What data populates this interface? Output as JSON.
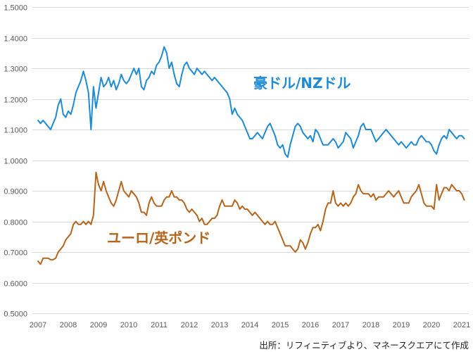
{
  "chart_data": {
    "type": "line",
    "ylim": [
      0.5,
      1.5
    ],
    "yticks": [
      "0.5000",
      "0.6000",
      "0.7000",
      "0.8000",
      "0.9000",
      "1.0000",
      "1.1000",
      "1.2000",
      "1.3000",
      "1.4000",
      "1.5000"
    ],
    "xticks": [
      "2007",
      "2008",
      "2009",
      "2010",
      "2011",
      "2012",
      "2013",
      "2014",
      "2015",
      "2016",
      "2017",
      "2018",
      "2019",
      "2020",
      "2021"
    ],
    "grid": "horizontal",
    "legend": "inline",
    "x": [
      "2007-01",
      "2007-02",
      "2007-03",
      "2007-04",
      "2007-05",
      "2007-06",
      "2007-07",
      "2007-08",
      "2007-09",
      "2007-10",
      "2007-11",
      "2007-12",
      "2008-01",
      "2008-02",
      "2008-03",
      "2008-04",
      "2008-05",
      "2008-06",
      "2008-07",
      "2008-08",
      "2008-09",
      "2008-10",
      "2008-11",
      "2008-12",
      "2009-01",
      "2009-02",
      "2009-03",
      "2009-04",
      "2009-05",
      "2009-06",
      "2009-07",
      "2009-08",
      "2009-09",
      "2009-10",
      "2009-11",
      "2009-12",
      "2010-01",
      "2010-02",
      "2010-03",
      "2010-04",
      "2010-05",
      "2010-06",
      "2010-07",
      "2010-08",
      "2010-09",
      "2010-10",
      "2010-11",
      "2010-12",
      "2011-01",
      "2011-02",
      "2011-03",
      "2011-04",
      "2011-05",
      "2011-06",
      "2011-07",
      "2011-08",
      "2011-09",
      "2011-10",
      "2011-11",
      "2011-12",
      "2012-01",
      "2012-02",
      "2012-03",
      "2012-04",
      "2012-05",
      "2012-06",
      "2012-07",
      "2012-08",
      "2012-09",
      "2012-10",
      "2012-11",
      "2012-12",
      "2013-01",
      "2013-02",
      "2013-03",
      "2013-04",
      "2013-05",
      "2013-06",
      "2013-07",
      "2013-08",
      "2013-09",
      "2013-10",
      "2013-11",
      "2013-12",
      "2014-01",
      "2014-02",
      "2014-03",
      "2014-04",
      "2014-05",
      "2014-06",
      "2014-07",
      "2014-08",
      "2014-09",
      "2014-10",
      "2014-11",
      "2014-12",
      "2015-01",
      "2015-02",
      "2015-03",
      "2015-04",
      "2015-05",
      "2015-06",
      "2015-07",
      "2015-08",
      "2015-09",
      "2015-10",
      "2015-11",
      "2015-12",
      "2016-01",
      "2016-02",
      "2016-03",
      "2016-04",
      "2016-05",
      "2016-06",
      "2016-07",
      "2016-08",
      "2016-09",
      "2016-10",
      "2016-11",
      "2016-12",
      "2017-01",
      "2017-02",
      "2017-03",
      "2017-04",
      "2017-05",
      "2017-06",
      "2017-07",
      "2017-08",
      "2017-09",
      "2017-10",
      "2017-11",
      "2017-12",
      "2018-01",
      "2018-02",
      "2018-03",
      "2018-04",
      "2018-05",
      "2018-06",
      "2018-07",
      "2018-08",
      "2018-09",
      "2018-10",
      "2018-11",
      "2018-12",
      "2019-01",
      "2019-02",
      "2019-03",
      "2019-04",
      "2019-05",
      "2019-06",
      "2019-07",
      "2019-08",
      "2019-09",
      "2019-10",
      "2019-11",
      "2019-12",
      "2020-01",
      "2020-02",
      "2020-03",
      "2020-04",
      "2020-05",
      "2020-06",
      "2020-07",
      "2020-08",
      "2020-09",
      "2020-10",
      "2020-11",
      "2020-12",
      "2021-01",
      "2021-02"
    ],
    "series": [
      {
        "name": "豪ドル/NZドル",
        "color": "#1f8bd3",
        "values": [
          1.13,
          1.12,
          1.13,
          1.12,
          1.11,
          1.1,
          1.12,
          1.14,
          1.18,
          1.2,
          1.15,
          1.14,
          1.16,
          1.15,
          1.18,
          1.22,
          1.24,
          1.26,
          1.29,
          1.26,
          1.22,
          1.1,
          1.24,
          1.17,
          1.22,
          1.27,
          1.24,
          1.25,
          1.27,
          1.24,
          1.26,
          1.23,
          1.25,
          1.28,
          1.26,
          1.25,
          1.26,
          1.28,
          1.3,
          1.28,
          1.3,
          1.24,
          1.23,
          1.26,
          1.27,
          1.29,
          1.28,
          1.31,
          1.32,
          1.34,
          1.37,
          1.35,
          1.3,
          1.32,
          1.28,
          1.25,
          1.24,
          1.28,
          1.31,
          1.32,
          1.3,
          1.29,
          1.28,
          1.3,
          1.29,
          1.28,
          1.29,
          1.28,
          1.27,
          1.26,
          1.27,
          1.26,
          1.25,
          1.24,
          1.23,
          1.22,
          1.2,
          1.15,
          1.17,
          1.15,
          1.14,
          1.13,
          1.11,
          1.09,
          1.07,
          1.07,
          1.08,
          1.09,
          1.08,
          1.07,
          1.09,
          1.11,
          1.12,
          1.1,
          1.08,
          1.05,
          1.04,
          1.05,
          1.02,
          1.01,
          1.05,
          1.08,
          1.11,
          1.12,
          1.11,
          1.09,
          1.08,
          1.07,
          1.08,
          1.06,
          1.1,
          1.09,
          1.07,
          1.05,
          1.05,
          1.05,
          1.06,
          1.07,
          1.06,
          1.04,
          1.05,
          1.06,
          1.09,
          1.08,
          1.07,
          1.04,
          1.06,
          1.08,
          1.11,
          1.12,
          1.1,
          1.1,
          1.1,
          1.08,
          1.06,
          1.07,
          1.08,
          1.09,
          1.1,
          1.09,
          1.08,
          1.07,
          1.06,
          1.05,
          1.06,
          1.05,
          1.04,
          1.05,
          1.06,
          1.05,
          1.05,
          1.07,
          1.08,
          1.07,
          1.06,
          1.06,
          1.05,
          1.03,
          1.02,
          1.05,
          1.07,
          1.08,
          1.07,
          1.1,
          1.09,
          1.08,
          1.07,
          1.08,
          1.08,
          1.07
        ]
      },
      {
        "name": "ユーロ/英ポンド",
        "color": "#b5651d",
        "values": [
          0.67,
          0.66,
          0.68,
          0.68,
          0.68,
          0.675,
          0.675,
          0.68,
          0.7,
          0.71,
          0.72,
          0.74,
          0.75,
          0.76,
          0.79,
          0.8,
          0.79,
          0.79,
          0.8,
          0.79,
          0.8,
          0.79,
          0.82,
          0.96,
          0.92,
          0.9,
          0.93,
          0.9,
          0.88,
          0.86,
          0.85,
          0.87,
          0.9,
          0.93,
          0.9,
          0.89,
          0.88,
          0.9,
          0.89,
          0.88,
          0.86,
          0.83,
          0.83,
          0.82,
          0.86,
          0.88,
          0.86,
          0.85,
          0.85,
          0.85,
          0.87,
          0.88,
          0.88,
          0.9,
          0.88,
          0.88,
          0.87,
          0.87,
          0.86,
          0.84,
          0.83,
          0.84,
          0.83,
          0.82,
          0.8,
          0.81,
          0.79,
          0.79,
          0.8,
          0.81,
          0.81,
          0.82,
          0.85,
          0.87,
          0.85,
          0.85,
          0.85,
          0.85,
          0.87,
          0.86,
          0.84,
          0.85,
          0.84,
          0.84,
          0.83,
          0.82,
          0.83,
          0.82,
          0.81,
          0.8,
          0.79,
          0.8,
          0.79,
          0.79,
          0.8,
          0.78,
          0.76,
          0.74,
          0.72,
          0.72,
          0.72,
          0.71,
          0.7,
          0.71,
          0.74,
          0.73,
          0.71,
          0.73,
          0.76,
          0.78,
          0.78,
          0.79,
          0.77,
          0.8,
          0.84,
          0.86,
          0.86,
          0.9,
          0.86,
          0.85,
          0.86,
          0.85,
          0.86,
          0.85,
          0.86,
          0.88,
          0.89,
          0.92,
          0.9,
          0.89,
          0.89,
          0.89,
          0.88,
          0.89,
          0.87,
          0.88,
          0.88,
          0.88,
          0.89,
          0.9,
          0.89,
          0.88,
          0.89,
          0.9,
          0.88,
          0.86,
          0.86,
          0.86,
          0.88,
          0.89,
          0.9,
          0.92,
          0.89,
          0.86,
          0.85,
          0.85,
          0.85,
          0.84,
          0.92,
          0.87,
          0.89,
          0.91,
          0.91,
          0.9,
          0.92,
          0.91,
          0.9,
          0.9,
          0.89,
          0.87
        ]
      }
    ],
    "source": "出所：リフィニティブより、マネースクエアにて作成"
  }
}
